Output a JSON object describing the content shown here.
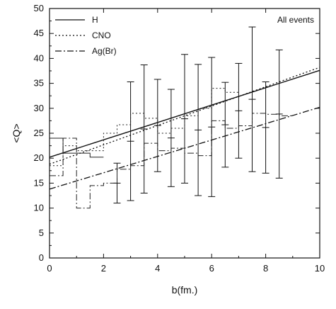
{
  "chart_data": {
    "type": "line",
    "title": "",
    "xlabel": "b(fm.)",
    "ylabel": "<Q>",
    "xlim": [
      0,
      10
    ],
    "ylim": [
      0,
      50
    ],
    "xticks": [
      0,
      2,
      4,
      6,
      8,
      10
    ],
    "yticks": [
      0,
      5,
      10,
      15,
      20,
      25,
      30,
      35,
      40,
      45,
      50
    ],
    "grid": false,
    "legend_position": "top-left",
    "annotation": "All events",
    "series": [
      {
        "name": "H",
        "style": "solid",
        "kind": "fit",
        "line": [
          [
            0,
            20.2
          ],
          [
            10,
            37.6
          ]
        ],
        "steps": [
          [
            0,
            24
          ],
          [
            0.5,
            24
          ],
          [
            0.5,
            21
          ],
          [
            1,
            21
          ],
          [
            1,
            21
          ],
          [
            1.5,
            21
          ],
          [
            1.5,
            20.2
          ],
          [
            2,
            20.2
          ]
        ],
        "errorbars": [
          {
            "x": 2.5,
            "low": 11,
            "high": 19
          },
          {
            "x": 3,
            "low": 11.5,
            "high": 35.3
          },
          {
            "x": 3.5,
            "low": 13,
            "high": 38.7
          },
          {
            "x": 4,
            "low": 17.3,
            "high": 35.8
          },
          {
            "x": 4.5,
            "low": 14.3,
            "high": 33.8
          },
          {
            "x": 5,
            "low": 15,
            "high": 40.8
          },
          {
            "x": 5.5,
            "low": 12.5,
            "high": 38.8
          },
          {
            "x": 6,
            "low": 12.3,
            "high": 40.2
          },
          {
            "x": 6.5,
            "low": 18.2,
            "high": 35.2
          },
          {
            "x": 7,
            "low": 20,
            "high": 39
          },
          {
            "x": 7.5,
            "low": 17.3,
            "high": 46.3
          },
          {
            "x": 8,
            "low": 17,
            "high": 35.3
          },
          {
            "x": 8.5,
            "low": 16,
            "high": 41.7
          }
        ]
      },
      {
        "name": "CNO",
        "style": "dotted",
        "kind": "fit",
        "line": [
          [
            0,
            18.8
          ],
          [
            10,
            38.2
          ]
        ],
        "steps": [
          [
            0,
            18.5
          ],
          [
            0.5,
            18.5
          ],
          [
            0.5,
            22.5
          ],
          [
            1,
            22.5
          ],
          [
            1,
            21.5
          ],
          [
            1.5,
            21.5
          ],
          [
            1.5,
            21.5
          ],
          [
            2,
            21.5
          ],
          [
            2,
            25
          ],
          [
            2.5,
            25
          ],
          [
            2.5,
            26.7
          ],
          [
            3,
            26.7
          ],
          [
            3,
            29
          ],
          [
            3.5,
            29
          ],
          [
            3.5,
            28
          ],
          [
            4,
            28
          ],
          [
            4,
            25
          ],
          [
            4.5,
            25
          ],
          [
            4.5,
            26
          ],
          [
            5,
            26
          ],
          [
            5,
            28.5
          ],
          [
            5.5,
            28.5
          ],
          [
            5.5,
            30
          ],
          [
            6,
            30
          ],
          [
            6,
            34
          ],
          [
            6.5,
            34
          ],
          [
            6.5,
            33.2
          ],
          [
            7,
            33.2
          ]
        ]
      },
      {
        "name": "Ag(Br)",
        "style": "dashdot",
        "kind": "fit",
        "line": [
          [
            0,
            13.8
          ],
          [
            10,
            30.2
          ]
        ],
        "steps": [
          [
            0,
            16.5
          ],
          [
            0.5,
            16.5
          ],
          [
            0.5,
            24
          ],
          [
            1,
            24
          ],
          [
            1,
            10
          ],
          [
            1.5,
            10
          ],
          [
            1.5,
            14.5
          ],
          [
            2,
            14.5
          ],
          [
            2,
            15
          ],
          [
            2.5,
            15
          ],
          [
            2.5,
            17.8
          ],
          [
            3,
            17.8
          ],
          [
            3,
            18.5
          ],
          [
            3.5,
            18.5
          ],
          [
            3.5,
            23
          ],
          [
            4,
            23
          ],
          [
            4,
            21.5
          ],
          [
            4.5,
            21.5
          ],
          [
            4.5,
            22
          ],
          [
            5,
            22
          ],
          [
            5,
            21
          ],
          [
            5.5,
            21
          ],
          [
            5.5,
            20.5
          ],
          [
            6,
            20.5
          ],
          [
            6,
            27.5
          ],
          [
            6.5,
            27.5
          ],
          [
            6.5,
            26
          ],
          [
            7,
            26
          ],
          [
            7,
            26.5
          ],
          [
            7.5,
            26.5
          ],
          [
            7.5,
            29
          ],
          [
            8,
            29
          ],
          [
            8,
            28.8
          ],
          [
            8.5,
            28.8
          ],
          [
            8.5,
            28.5
          ],
          [
            9,
            28.5
          ]
        ]
      }
    ]
  }
}
